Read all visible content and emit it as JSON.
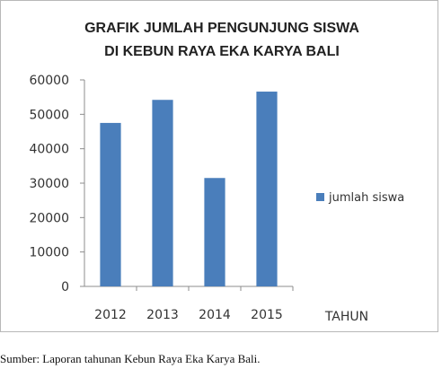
{
  "chart_data": {
    "type": "bar",
    "title": [
      "GRAFIK JUMLAH PENGUNJUNG SISWA",
      "DI KEBUN RAYA EKA KARYA BALI"
    ],
    "categories": [
      "2012",
      "2013",
      "2014",
      "2015"
    ],
    "series": [
      {
        "name": "jumlah siswa",
        "values": [
          47500,
          54200,
          31500,
          56600
        ],
        "color": "#4a7ebb"
      }
    ],
    "xlabel": "TAHUN",
    "ylabel": "",
    "ylim": [
      0,
      60000
    ],
    "yticks": [
      0,
      10000,
      20000,
      30000,
      40000,
      50000,
      60000
    ],
    "grid": false,
    "legend": "right"
  },
  "source_note": "Sumber: Laporan tahunan Kebun Raya Eka Karya Bali."
}
